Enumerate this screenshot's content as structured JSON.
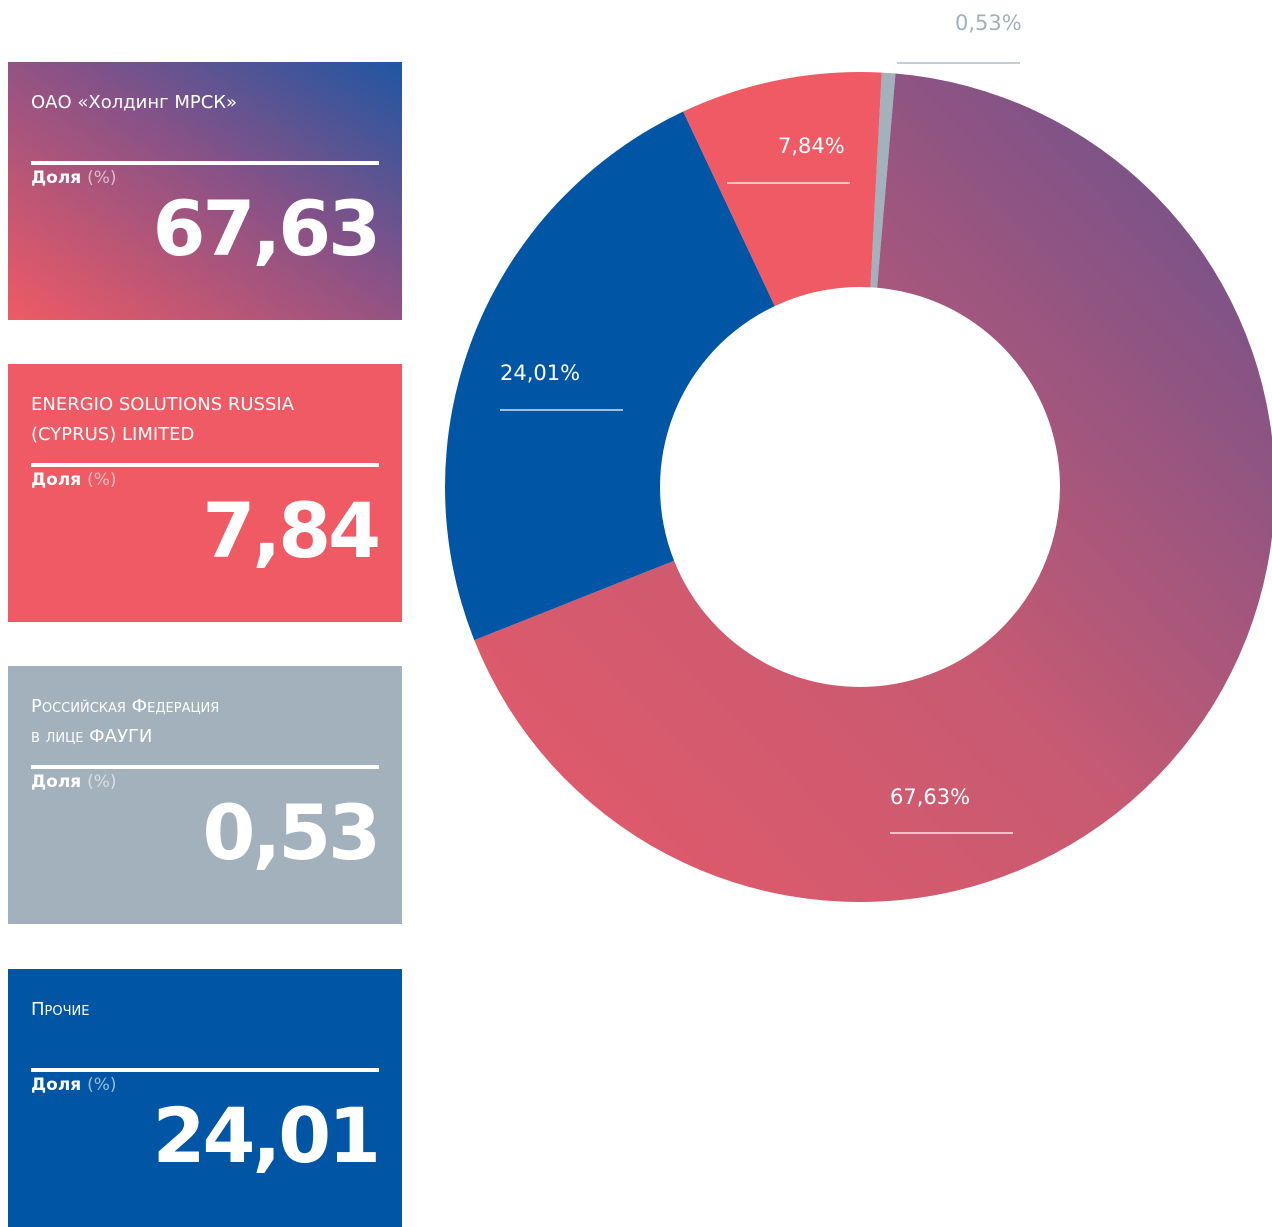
{
  "chart_data": {
    "type": "donut",
    "categories": [
      "ОАО «Холдинг МРСК»",
      "ENERGIO SOLUTIONS RUSSIA\n(CYPRUS) LIMITED",
      "Российская Федерация\nв лице ФАУГИ",
      "Прочие"
    ],
    "values": [
      67.63,
      7.84,
      0.53,
      24.01
    ],
    "value_labels": [
      "67,63%",
      "7,84%",
      "0,53%",
      "24,01%"
    ],
    "card_labels": [
      "67,63",
      "7,84",
      "0,53",
      "24,01"
    ],
    "share_label": "Доля",
    "unit_label": "(%)",
    "colors": [
      "#dc5a6c",
      "#f05a64",
      "#a2b1bb",
      "#0055a4"
    ]
  }
}
